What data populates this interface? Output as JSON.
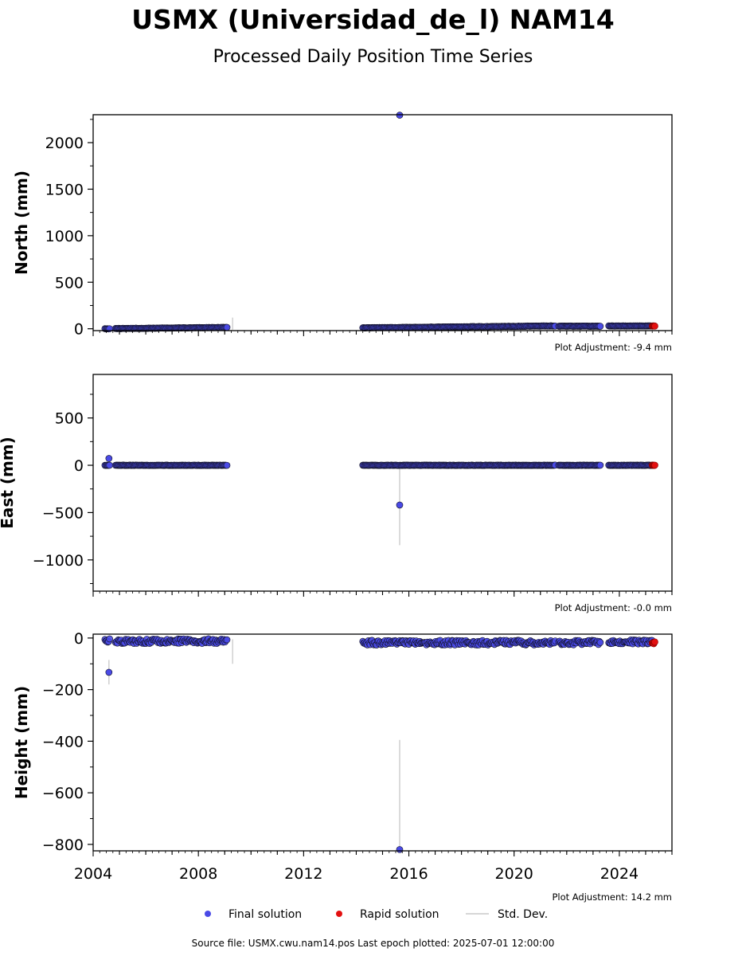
{
  "title": "USMX (Universidad_de_l) NAM14",
  "subtitle": "Processed Daily Position Time Series",
  "legend": {
    "final": "Final solution",
    "rapid": "Rapid solution",
    "std": "Std. Dev.",
    "placement": "bottom-center"
  },
  "footer": "Source file: USMX.cwu.nam14.pos  Last epoch plotted: 2025-07-01 12:00:00",
  "colors": {
    "final": "#4a4ae6",
    "rapid": "#e31010",
    "std": "#c8c8c8",
    "edge": "#111122"
  },
  "chart_data": [
    {
      "type": "scatter",
      "ylabel": "North (mm)",
      "adjustment": "Plot Adjustment: -9.4 mm",
      "xlim": [
        2004.0,
        2026.0
      ],
      "ylim": [
        -20,
        2300
      ],
      "yticks": [
        0,
        500,
        1000,
        1500,
        2000
      ],
      "ytick_labels": [
        "0",
        "500",
        "1000",
        "1500",
        "2000"
      ],
      "segments": [
        {
          "start": 2004.45,
          "end": 2004.65,
          "base": 0,
          "amp": 1,
          "trend": 0
        },
        {
          "start": 2004.85,
          "end": 2009.1,
          "base": 2,
          "amp": 2,
          "trend": 3
        },
        {
          "start": 2014.25,
          "end": 2021.6,
          "base": 10,
          "amp": 2,
          "trend": 2.8
        },
        {
          "start": 2021.7,
          "end": 2023.3,
          "base": 28,
          "amp": 1.5,
          "trend": 0
        },
        {
          "start": 2023.6,
          "end": 2025.3,
          "base": 30,
          "amp": 1.5,
          "trend": 0
        }
      ],
      "rapid_segment": {
        "start": 2025.25,
        "end": 2025.35,
        "base": 30,
        "amp": 2
      },
      "outliers": [
        {
          "x": 2015.65,
          "y": 2295
        }
      ],
      "std_bars": [
        {
          "x": 2009.3,
          "lo": -10,
          "hi": 120
        }
      ]
    },
    {
      "type": "scatter",
      "ylabel": "East (mm)",
      "adjustment": "Plot Adjustment: -0.0 mm",
      "xlim": [
        2004.0,
        2026.0
      ],
      "ylim": [
        -1330,
        960
      ],
      "yticks": [
        -1000,
        -500,
        0,
        500
      ],
      "ytick_labels": [
        "−1000",
        "−500",
        "0",
        "500"
      ],
      "segments": [
        {
          "start": 2004.45,
          "end": 2004.65,
          "base": 0,
          "amp": 1,
          "trend": 0
        },
        {
          "start": 2004.85,
          "end": 2009.1,
          "base": 0,
          "amp": 1.5,
          "trend": 0
        },
        {
          "start": 2014.25,
          "end": 2021.6,
          "base": 0,
          "amp": 1.5,
          "trend": 0
        },
        {
          "start": 2021.7,
          "end": 2023.3,
          "base": 0,
          "amp": 1.5,
          "trend": 0
        },
        {
          "start": 2023.6,
          "end": 2025.3,
          "base": 0,
          "amp": 1.5,
          "trend": 0
        }
      ],
      "rapid_segment": {
        "start": 2025.25,
        "end": 2025.35,
        "base": 0,
        "amp": 2
      },
      "outliers": [
        {
          "x": 2004.6,
          "y": 72
        },
        {
          "x": 2015.65,
          "y": -420
        }
      ],
      "std_bars": [
        {
          "x": 2015.65,
          "lo": -845,
          "hi": 0
        }
      ]
    },
    {
      "type": "scatter",
      "ylabel": "Height (mm)",
      "adjustment": "Plot Adjustment: 14.2 mm",
      "xlim": [
        2004.0,
        2026.0
      ],
      "ylim": [
        -825,
        15
      ],
      "yticks": [
        -800,
        -600,
        -400,
        -200,
        0
      ],
      "ytick_labels": [
        "−800",
        "−600",
        "−400",
        "−200",
        "0"
      ],
      "xticks": [
        2004,
        2008,
        2012,
        2016,
        2020,
        2024
      ],
      "xtick_labels": [
        "2004",
        "2008",
        "2012",
        "2016",
        "2020",
        "2024"
      ],
      "segments": [
        {
          "start": 2004.45,
          "end": 2004.65,
          "base": -12,
          "amp": 9,
          "trend": 0
        },
        {
          "start": 2004.85,
          "end": 2009.1,
          "base": -12,
          "amp": 9,
          "trend": 0
        },
        {
          "start": 2014.25,
          "end": 2021.6,
          "base": -18,
          "amp": 9,
          "trend": 0
        },
        {
          "start": 2021.7,
          "end": 2023.3,
          "base": -18,
          "amp": 9,
          "trend": 0
        },
        {
          "start": 2023.6,
          "end": 2025.3,
          "base": -15,
          "amp": 8,
          "trend": 0
        }
      ],
      "rapid_segment": {
        "start": 2025.25,
        "end": 2025.35,
        "base": -20,
        "amp": 5
      },
      "outliers": [
        {
          "x": 2004.6,
          "y": -133
        },
        {
          "x": 2015.65,
          "y": -820
        }
      ],
      "std_bars": [
        {
          "x": 2004.6,
          "lo": -180,
          "hi": -85
        },
        {
          "x": 2009.3,
          "lo": -100,
          "hi": -5
        },
        {
          "x": 2015.65,
          "lo": -820,
          "hi": -395
        }
      ]
    }
  ]
}
